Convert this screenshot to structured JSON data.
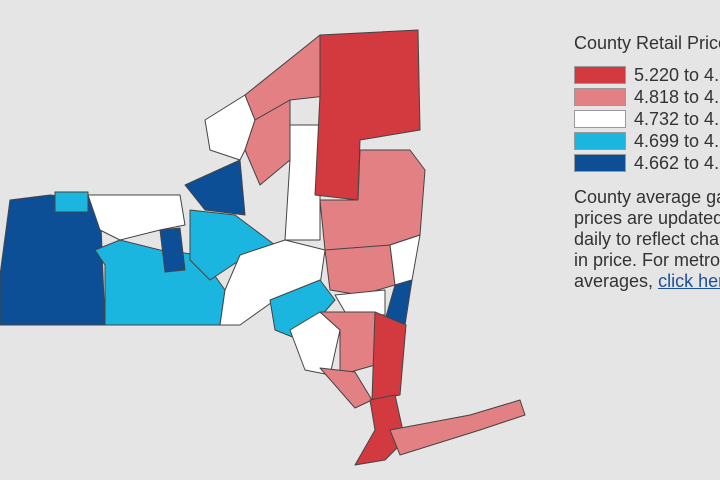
{
  "legend": {
    "title": "County Retail Price",
    "items": [
      {
        "label": "5.220 to 4.",
        "color": "#d23a40"
      },
      {
        "label": "4.818 to 4.",
        "color": "#e38083"
      },
      {
        "label": "4.732 to 4.",
        "color": "#ffffff"
      },
      {
        "label": "4.699 to 4.",
        "color": "#1bb6e0"
      },
      {
        "label": "4.662 to 4.",
        "color": "#0d4f96"
      }
    ]
  },
  "note": {
    "lines": [
      "County average ga",
      "prices are updated",
      "daily to reflect cha",
      "in price. For metro",
      "averages,"
    ],
    "link": "click her"
  }
}
